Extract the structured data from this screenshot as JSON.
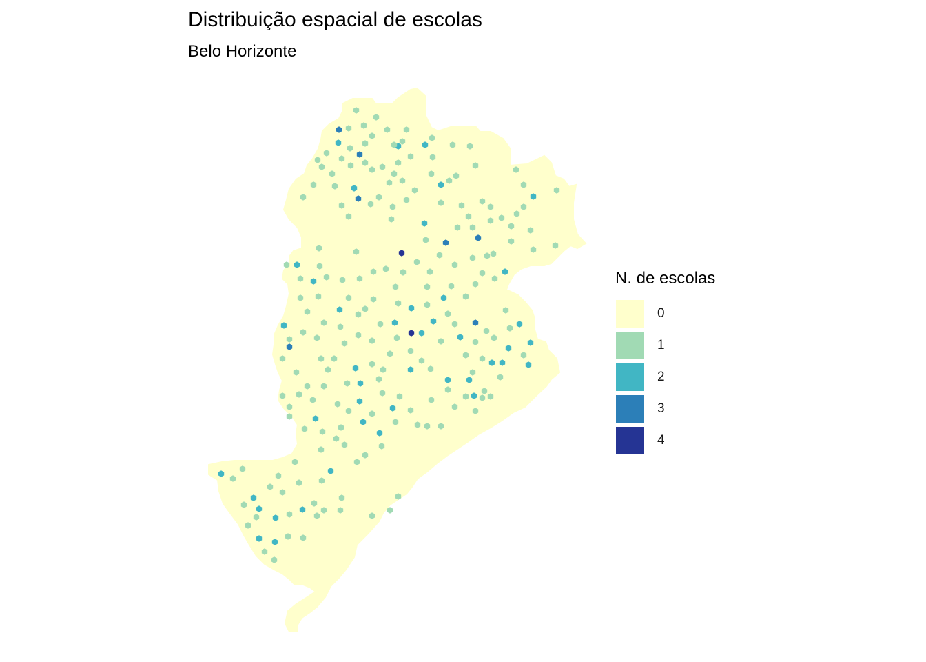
{
  "title": "Distribuição espacial de escolas",
  "subtitle": "Belo Horizonte",
  "legend": {
    "title": "N. de escolas",
    "items": [
      {
        "label": "0",
        "color": "#ffffcc"
      },
      {
        "label": "1",
        "color": "#a1dab4"
      },
      {
        "label": "2",
        "color": "#41b6c4"
      },
      {
        "label": "3",
        "color": "#2c7fb8"
      },
      {
        "label": "4",
        "color": "#253494"
      }
    ]
  },
  "map": {
    "city": "Belo Horizonte",
    "fill_color": "#ffffcc",
    "cell_shape": "hexagon"
  }
}
